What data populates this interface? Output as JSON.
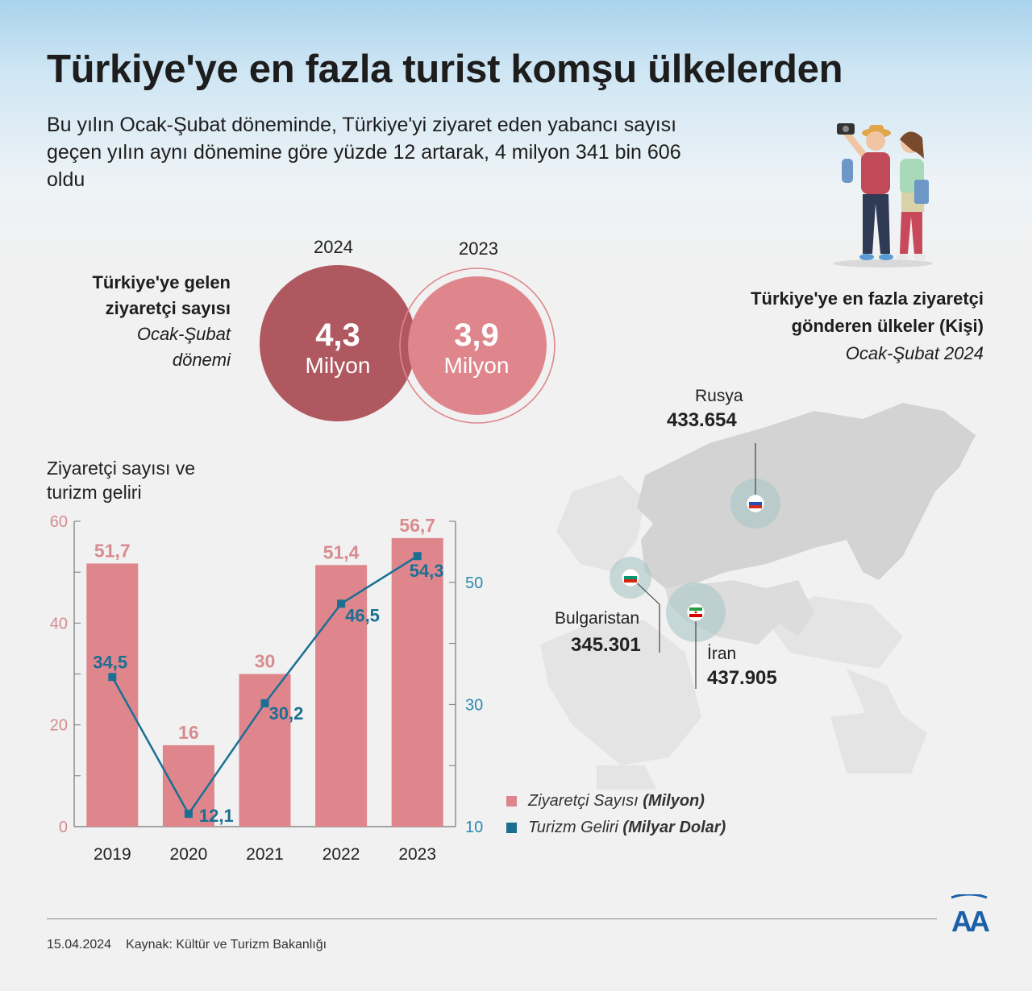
{
  "header": {
    "title": "Türkiye'ye en fazla turist komşu ülkelerden",
    "subtitle": "Bu yılın Ocak-Şubat döneminde, Türkiye'yi ziyaret eden yabancı sayısı geçen yılın aynı dönemine göre yüzde 12 artarak, 4 milyon 341 bin 606 oldu"
  },
  "visitors": {
    "label_line1": "Türkiye'ye gelen",
    "label_line2": "ziyaretçi sayısı",
    "period_line1": "Ocak-Şubat",
    "period_line2": "dönemi",
    "year_2024": "2024",
    "year_2023": "2023",
    "value_2024": "4,3",
    "value_2023": "3,9",
    "unit_2024": "Milyon",
    "unit_2023": "Milyon",
    "colors": {
      "dark": "#b05860",
      "light": "#de868c"
    }
  },
  "chart_data": {
    "type": "bar",
    "title": "Ziyaretçi sayısı ve turizm geliri",
    "categories": [
      "2019",
      "2020",
      "2021",
      "2022",
      "2023"
    ],
    "series": [
      {
        "name": "Ziyaretçi Sayısı (Milyon)",
        "type": "bar",
        "axis": "left",
        "color": "#de868c",
        "values": [
          51.7,
          16,
          30,
          51.4,
          56.7
        ],
        "labels": [
          "51,7",
          "16",
          "30",
          "51,4",
          "56,7"
        ]
      },
      {
        "name": "Turizm Geliri (Milyar Dolar)",
        "type": "line",
        "axis": "right",
        "color": "#1b6f93",
        "values": [
          34.5,
          12.1,
          30.2,
          46.5,
          54.3
        ],
        "labels": [
          "34,5",
          "12,1",
          "30,2",
          "46,5",
          "54,3"
        ]
      }
    ],
    "left_axis": {
      "ylim": [
        0,
        60
      ],
      "ticks": [
        "0",
        "20",
        "40",
        "60"
      ],
      "tick_values": [
        0,
        20,
        40,
        60
      ]
    },
    "right_axis": {
      "ylim": [
        10,
        60
      ],
      "ticks": [
        "10",
        "30",
        "50"
      ],
      "tick_values": [
        10,
        30,
        50
      ]
    },
    "legend": [
      {
        "label": "Ziyaretçi Sayısı",
        "unit": "(Milyon)"
      },
      {
        "label": "Turizm Geliri",
        "unit": "(Milyar Dolar)"
      }
    ],
    "legend_placement": "bottom-right"
  },
  "map": {
    "title_line1": "Türkiye'ye en fazla ziyaretçi",
    "title_line2": "gönderen ülkeler (Kişi)",
    "period": "Ocak-Şubat 2024",
    "countries": [
      {
        "name": "Rusya",
        "value": "433.654",
        "flag": "russia-flag-icon"
      },
      {
        "name": "Bulgaristan",
        "value": "345.301",
        "flag": "bulgaria-flag-icon"
      },
      {
        "name": "İran",
        "value": "437.905",
        "flag": "iran-flag-icon"
      }
    ]
  },
  "footer": {
    "date": "15.04.2024",
    "source": "Kaynak: Kültür ve Turizm Bakanlığı",
    "logo": "AA"
  }
}
